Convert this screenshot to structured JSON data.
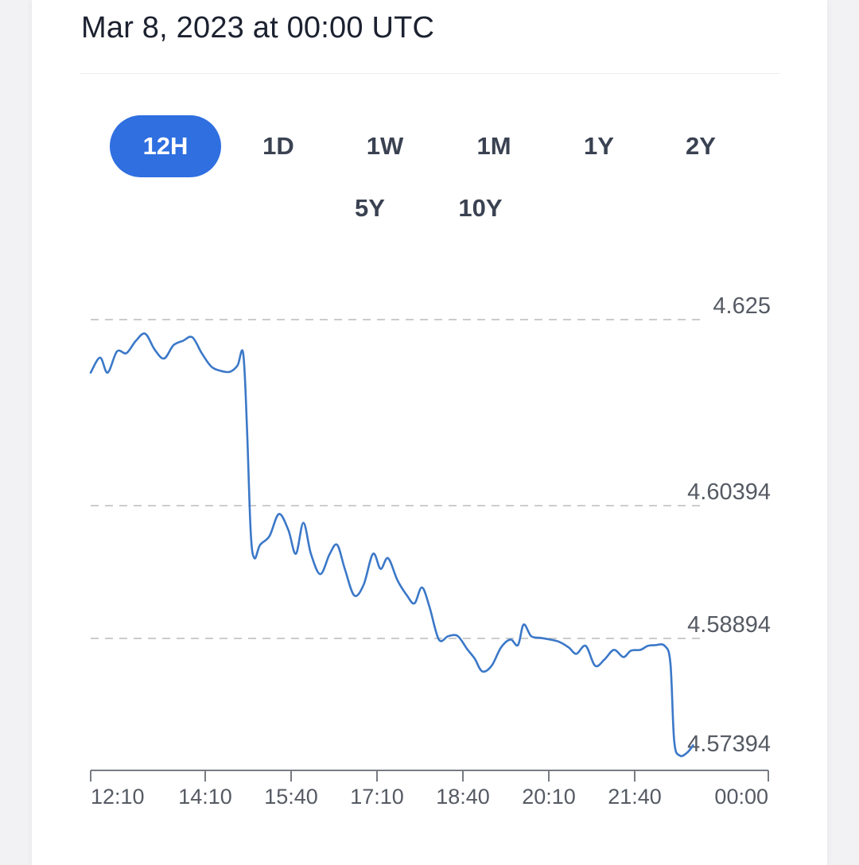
{
  "header": {
    "timestamp": "Mar 8, 2023 at 00:00 UTC"
  },
  "ranges": [
    "12H",
    "1D",
    "1W",
    "1M",
    "1Y",
    "2Y",
    "5Y",
    "10Y"
  ],
  "active_range": "12H",
  "colors": {
    "accent": "#2f6fe0",
    "line": "#3b78c8",
    "grid": "#cccccc"
  },
  "chart_data": {
    "type": "line",
    "y_ticks": [
      "4.625",
      "4.60394",
      "4.58894",
      "4.57394"
    ],
    "x_ticks": [
      "12:10",
      "14:10",
      "15:40",
      "17:10",
      "18:40",
      "20:10",
      "21:40",
      "00:00"
    ],
    "xlim": [
      "12:00",
      "00:00"
    ],
    "ylim": [
      4.57394,
      4.625
    ],
    "grid": "horizontal dashed",
    "series": [
      {
        "points": [
          [
            "12:00",
            4.619
          ],
          [
            "12:10",
            4.6207
          ],
          [
            "12:18",
            4.619
          ],
          [
            "12:28",
            4.6214
          ],
          [
            "12:38",
            4.6212
          ],
          [
            "12:48",
            4.6226
          ],
          [
            "12:58",
            4.6234
          ],
          [
            "13:08",
            4.6216
          ],
          [
            "13:18",
            4.6206
          ],
          [
            "13:28",
            4.6221
          ],
          [
            "13:38",
            4.6226
          ],
          [
            "13:48",
            4.623
          ],
          [
            "13:58",
            4.6212
          ],
          [
            "14:08",
            4.6197
          ],
          [
            "14:18",
            4.6192
          ],
          [
            "14:28",
            4.6191
          ],
          [
            "14:36",
            4.6198
          ],
          [
            "14:42",
            4.6212
          ],
          [
            "14:46",
            4.613
          ],
          [
            "14:50",
            4.601
          ],
          [
            "14:54",
            4.598
          ],
          [
            "15:00",
            4.5995
          ],
          [
            "15:10",
            4.6005
          ],
          [
            "15:20",
            4.603
          ],
          [
            "15:30",
            4.6012
          ],
          [
            "15:38",
            4.5985
          ],
          [
            "15:46",
            4.602
          ],
          [
            "15:54",
            4.5985
          ],
          [
            "16:04",
            4.5962
          ],
          [
            "16:14",
            4.5985
          ],
          [
            "16:22",
            4.5995
          ],
          [
            "16:30",
            4.5968
          ],
          [
            "16:40",
            4.5938
          ],
          [
            "16:50",
            4.595
          ],
          [
            "17:00",
            4.5985
          ],
          [
            "17:08",
            4.5968
          ],
          [
            "17:16",
            4.598
          ],
          [
            "17:26",
            4.5955
          ],
          [
            "17:36",
            4.5938
          ],
          [
            "17:44",
            4.5929
          ],
          [
            "17:52",
            4.5947
          ],
          [
            "18:00",
            4.5925
          ],
          [
            "18:10",
            4.5888
          ],
          [
            "18:20",
            4.5892
          ],
          [
            "18:30",
            4.5892
          ],
          [
            "18:40",
            4.5876
          ],
          [
            "18:48",
            4.5864
          ],
          [
            "18:56",
            4.5848
          ],
          [
            "19:06",
            4.5855
          ],
          [
            "19:16",
            4.5878
          ],
          [
            "19:26",
            4.5888
          ],
          [
            "19:34",
            4.5881
          ],
          [
            "19:40",
            4.5905
          ],
          [
            "19:48",
            4.5892
          ],
          [
            "19:58",
            4.589
          ],
          [
            "20:08",
            4.5888
          ],
          [
            "20:18",
            4.5885
          ],
          [
            "20:28",
            4.5878
          ],
          [
            "20:36",
            4.587
          ],
          [
            "20:46",
            4.588
          ],
          [
            "20:56",
            4.5855
          ],
          [
            "21:06",
            4.5863
          ],
          [
            "21:16",
            4.5875
          ],
          [
            "21:26",
            4.5866
          ],
          [
            "21:34",
            4.5874
          ],
          [
            "21:44",
            4.5875
          ],
          [
            "21:52",
            4.588
          ],
          [
            "22:00",
            4.5881
          ],
          [
            "22:10",
            4.588
          ],
          [
            "22:16",
            4.5858
          ],
          [
            "22:20",
            4.576
          ],
          [
            "22:26",
            4.5742
          ],
          [
            "22:34",
            4.5746
          ],
          [
            "22:40",
            4.5755
          ]
        ]
      }
    ]
  }
}
